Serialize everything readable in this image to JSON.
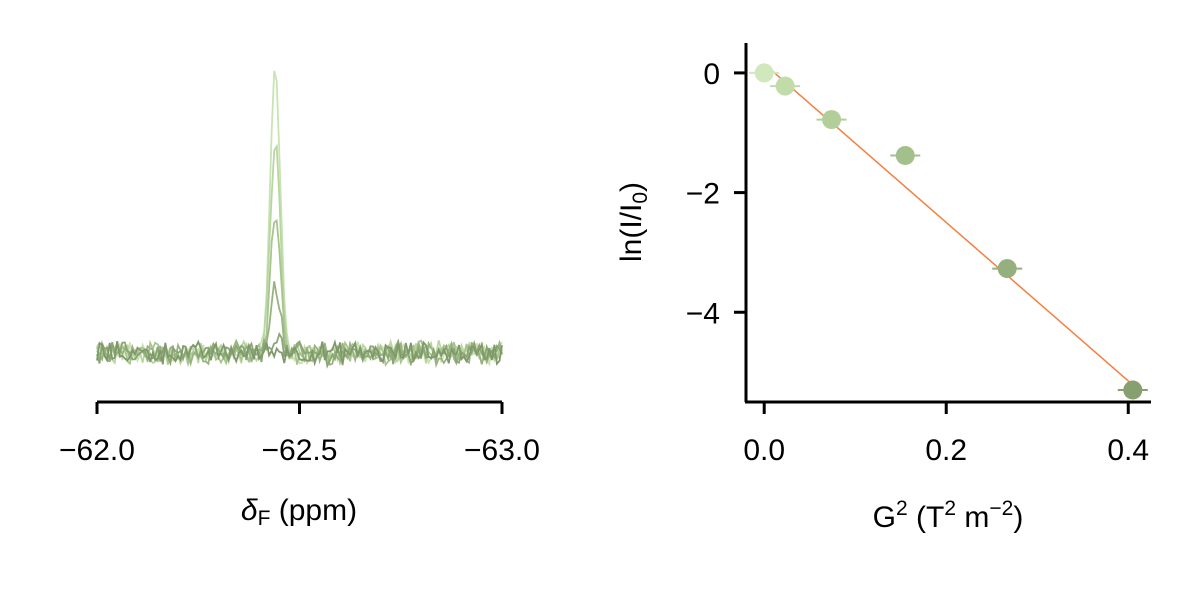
{
  "chart_data": [
    {
      "type": "line",
      "panel": "spectra",
      "xlabel_symbol": "δ",
      "xlabel_sub": "F",
      "xlabel_unit": " (ppm)",
      "xlim": [
        -62.0,
        -63.0
      ],
      "ticks": [
        {
          "value": -62.0,
          "label": "−62.0"
        },
        {
          "value": -62.5,
          "label": "−62.5"
        },
        {
          "value": -63.0,
          "label": "−63.0"
        }
      ],
      "peak_center": -62.44,
      "series": [
        {
          "peak_height": 1.0,
          "color": "#c9e3b2"
        },
        {
          "peak_height": 0.73,
          "color": "#b8d6a0"
        },
        {
          "peak_height": 0.5,
          "color": "#a8c58f"
        },
        {
          "peak_height": 0.22,
          "color": "#98b381"
        },
        {
          "peak_height": 0.06,
          "color": "#8ba675"
        },
        {
          "peak_height": 0.01,
          "color": "#80996b"
        }
      ]
    },
    {
      "type": "scatter",
      "panel": "decay",
      "ylabel": "ln(I/I",
      "ylabel_sub": "0",
      "ylabel_end": ")",
      "xlabel_main": "G",
      "xlabel_sup1": "2",
      "xlabel_mid": " (T",
      "xlabel_sup2": "2",
      "xlabel_m": " m",
      "xlabel_sup3": "−2",
      "xlabel_end": ")",
      "xlim": [
        -0.02,
        0.425
      ],
      "ylim": [
        -5.5,
        0.5
      ],
      "x_ticks": [
        {
          "value": 0.0,
          "label": "0.0"
        },
        {
          "value": 0.2,
          "label": "0.2"
        },
        {
          "value": 0.4,
          "label": "0.4"
        }
      ],
      "y_ticks": [
        {
          "value": 0,
          "label": "0"
        },
        {
          "value": -2,
          "label": "−2"
        },
        {
          "value": -4,
          "label": "−4"
        }
      ],
      "points": [
        {
          "x": 0.0,
          "y": 0.0,
          "color": "#d1e8bd"
        },
        {
          "x": 0.023,
          "y": -0.22,
          "color": "#c1dca9"
        },
        {
          "x": 0.074,
          "y": -0.78,
          "color": "#b2cf99"
        },
        {
          "x": 0.155,
          "y": -1.38,
          "color": "#a3c08c"
        },
        {
          "x": 0.267,
          "y": -3.27,
          "color": "#95b07e"
        },
        {
          "x": 0.405,
          "y": -5.3,
          "color": "#86a070"
        }
      ],
      "fit_line": {
        "x": [
          0.0,
          0.41
        ],
        "y": [
          0.15,
          -5.28
        ],
        "color": "#f28040"
      }
    }
  ]
}
